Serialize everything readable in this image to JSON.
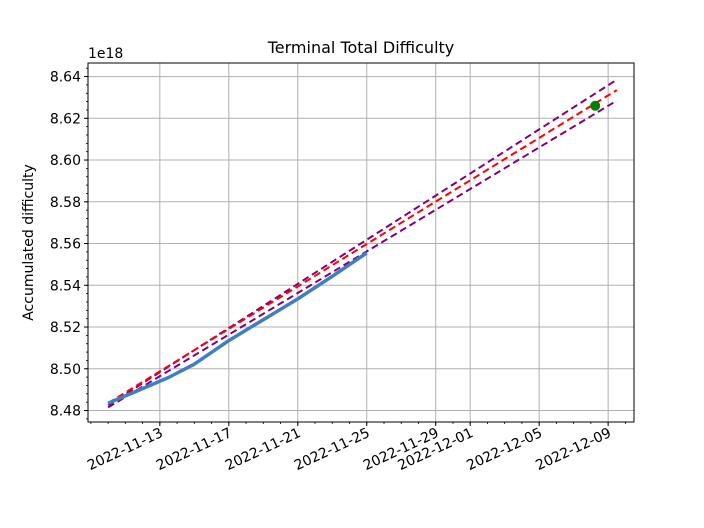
{
  "chart_data": {
    "type": "line",
    "title": "Terminal Total Difficulty",
    "xlabel": "",
    "ylabel": "Accumulated difficulty",
    "y_offset_label": "1e18",
    "x_is_date": true,
    "xlim": [
      "2022-11-08T20:00",
      "2022-12-10T12:00"
    ],
    "ylim": [
      8.4745,
      8.6465
    ],
    "x_ticks": [
      "2022-11-13",
      "2022-11-17",
      "2022-11-21",
      "2022-11-25",
      "2022-11-29",
      "2022-12-01",
      "2022-12-05",
      "2022-12-09"
    ],
    "y_ticks": [
      8.48,
      8.5,
      8.52,
      8.54,
      8.56,
      8.58,
      8.6,
      8.62,
      8.64
    ],
    "y_minor_step": 0.004,
    "grid": true,
    "colors": {
      "actual": "#3f7fbf",
      "projection": "#ff0000",
      "bounds": "#800080",
      "marker": "#008000"
    },
    "series": [
      {
        "role": "actual",
        "style": "solid",
        "points": [
          [
            "2022-11-10T00:00",
            8.4835
          ],
          [
            "2022-11-12T00:00",
            8.4905
          ],
          [
            "2022-11-13T12:00",
            8.4958
          ],
          [
            "2022-11-15T00:00",
            8.5022
          ],
          [
            "2022-11-17T00:00",
            8.5135
          ],
          [
            "2022-11-19T00:00",
            8.5235
          ],
          [
            "2022-11-21T00:00",
            8.5335
          ],
          [
            "2022-11-23T00:00",
            8.5443
          ],
          [
            "2022-11-25T00:00",
            8.5555
          ]
        ]
      },
      {
        "role": "projection",
        "style": "dashed",
        "points": [
          [
            "2022-11-10T00:00",
            8.4835
          ],
          [
            "2022-12-09T12:00",
            8.6335
          ]
        ]
      },
      {
        "role": "upper-bound",
        "style": "dashed",
        "points": [
          [
            "2022-11-10T00:00",
            8.4825
          ],
          [
            "2022-12-09T12:00",
            8.6385
          ]
        ]
      },
      {
        "role": "lower-bound",
        "style": "dashed",
        "points": [
          [
            "2022-11-10T00:00",
            8.4815
          ],
          [
            "2022-12-09T12:00",
            8.6285
          ]
        ]
      }
    ],
    "marker_point": [
      "2022-12-08T06:00",
      8.626
    ]
  }
}
